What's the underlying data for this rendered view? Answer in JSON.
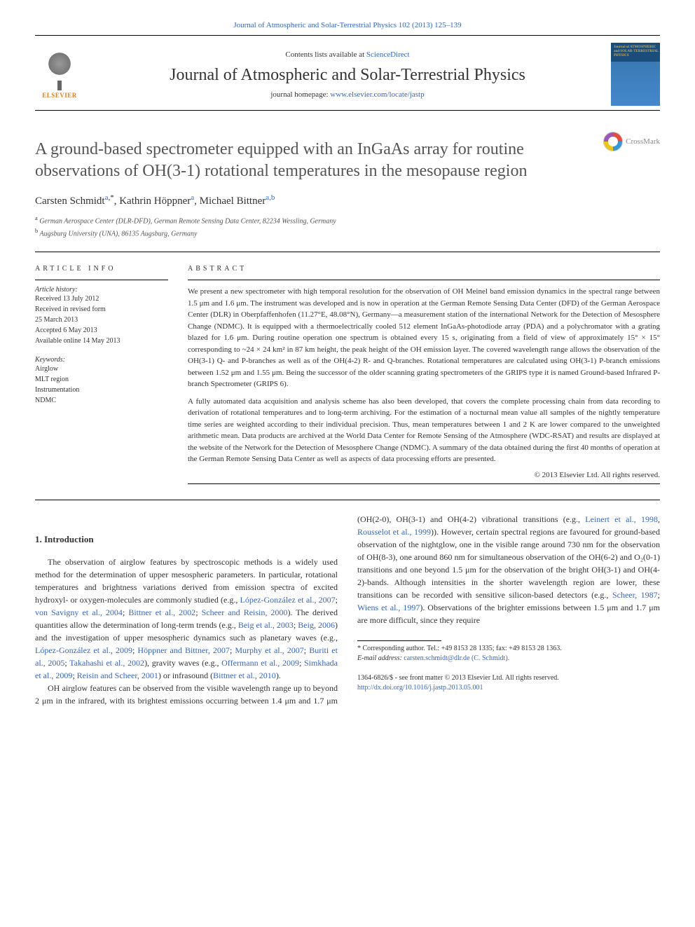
{
  "top_link": {
    "prefix": "",
    "journal_ref": "Journal of Atmospheric and Solar-Terrestrial Physics 102 (2013) 125–139"
  },
  "header": {
    "contents_prefix": "Contents lists available at ",
    "contents_link": "ScienceDirect",
    "journal_name": "Journal of Atmospheric and Solar-Terrestrial Physics",
    "homepage_prefix": "journal homepage: ",
    "homepage_link": "www.elsevier.com/locate/jastp",
    "publisher": "ELSEVIER",
    "cover_title": "Journal of ATMOSPHERIC and SOLAR-TERRESTRIAL PHYSICS"
  },
  "crossmark": "CrossMark",
  "title": "A ground-based spectrometer equipped with an InGaAs array for routine observations of OH(3-1) rotational temperatures in the mesopause region",
  "authors": [
    {
      "name": "Carsten Schmidt",
      "affs": "a",
      "corr": true
    },
    {
      "name": "Kathrin Höppner",
      "affs": "a",
      "corr": false
    },
    {
      "name": "Michael Bittner",
      "affs": "a,b",
      "corr": false
    }
  ],
  "affiliations": [
    {
      "key": "a",
      "text": "German Aerospace Center (DLR-DFD), German Remote Sensing Data Center, 82234 Wessling, Germany"
    },
    {
      "key": "b",
      "text": "Augsburg University (UNA), 86135 Augsburg, Germany"
    }
  ],
  "article_info": {
    "heading": "ARTICLE INFO",
    "history_label": "Article history:",
    "history": [
      "Received 13 July 2012",
      "Received in revised form",
      "25 March 2013",
      "Accepted 6 May 2013",
      "Available online 14 May 2013"
    ],
    "keywords_label": "Keywords:",
    "keywords": [
      "Airglow",
      "MLT region",
      "Instrumentation",
      "NDMC"
    ]
  },
  "abstract": {
    "heading": "ABSTRACT",
    "p1": "We present a new spectrometer with high temporal resolution for the observation of OH Meinel band emission dynamics in the spectral range between 1.5 μm and 1.6 μm. The instrument was developed and is now in operation at the German Remote Sensing Data Center (DFD) of the German Aerospace Center (DLR) in Oberpfaffenhofen (11.27°E, 48.08°N), Germany—a measurement station of the international Network for the Detection of Mesosphere Change (NDMC). It is equipped with a thermoelectrically cooled 512 element InGaAs-photodiode array (PDA) and a polychromator with a grating blazed for 1.6 μm. During routine operation one spectrum is obtained every 15 s, originating from a field of view of approximately 15° × 15° corresponding to ~24 × 24 km² in 87 km height, the peak height of the OH emission layer. The covered wavelength range allows the observation of the OH(3-1) Q- and P-branches as well as of the OH(4-2) R- and Q-branches. Rotational temperatures are calculated using OH(3-1) P-branch emissions between 1.52 μm and 1.55 μm. Being the successor of the older scanning grating spectrometers of the GRIPS type it is named Ground-based Infrared P-branch Spectrometer (GRIPS 6).",
    "p2": "A fully automated data acquisition and analysis scheme has also been developed, that covers the complete processing chain from data recording to derivation of rotational temperatures and to long-term archiving. For the estimation of a nocturnal mean value all samples of the nightly temperature time series are weighted according to their individual precision. Thus, mean temperatures between 1 and 2 K are lower compared to the unweighted arithmetic mean. Data products are archived at the World Data Center for Remote Sensing of the Atmosphere (WDC-RSAT) and results are displayed at the website of the Network for the Detection of Mesosphere Change (NDMC). A summary of the data obtained during the first 40 months of operation at the German Remote Sensing Data Center as well as aspects of data processing efforts are presented.",
    "copyright": "© 2013 Elsevier Ltd. All rights reserved."
  },
  "section1": {
    "heading": "1.  Introduction",
    "body_html": "The observation of airglow features by spectroscopic methods is a widely used method for the determination of upper mesospheric parameters. In particular, rotational temperatures and brightness variations derived from emission spectra of excited hydroxyl- or oxygen-molecules are commonly studied (e.g., <a href='#'>López-González et al., 2007</a>; <a href='#'>von Savigny et al., 2004</a>; <a href='#'>Bittner et al., 2002</a>; <a href='#'>Scheer and Reisin, 2000</a>). The derived quantities allow the determination of long-term trends (e.g., <a href='#'>Beig et al., 2003</a>; <a href='#'>Beig, 2006</a>) and the investigation of upper mesospheric dynamics such as planetary waves (e.g., <a href='#'>López-González et al., 2009</a>; <a href='#'>Höppner and Bittner, 2007</a>; <a href='#'>Murphy et al., 2007</a>; <a href='#'>Buriti et al., 2005</a>; <a href='#'>Takahashi et al., 2002</a>), gravity waves (e.g., <a href='#'>Offermann et al., 2009</a>; <a href='#'>Simkhada et al., 2009</a>; <a href='#'>Reisin and Scheer, 2001</a>) or infrasound (<a href='#'>Bittner et al., 2010</a>).</p><p>OH airglow features can be observed from the visible wavelength range up to beyond 2 μm in the infrared, with its brightest emissions occurring between 1.4 μm and 1.7 μm (OH(2-0), OH(3-1) and OH(4-2) vibrational transitions (e.g., <a href='#'>Leinert et al., 1998</a>, <a href='#'>Rousselot et al., 1999</a>)). However, certain spectral regions are favoured for ground-based observation of the nightglow, one in the visible range around 730 nm for the observation of OH(8-3), one around 860 nm for simultaneous observation of the OH(6-2) and O₂(0-1) transitions and one beyond 1.5 μm for the observation of the bright OH(3-1) and OH(4-2)-bands. Although intensities in the shorter wavelength region are lower, these transitions can be recorded with sensitive silicon-based detectors (e.g., <a href='#'>Scheer, 1987</a>; <a href='#'>Wiens et al., 1997</a>). Observations of the brighter emissions between 1.5 μm and 1.7 μm are more difficult, since they require"
  },
  "footnote": {
    "corr_label": "* Corresponding author. Tel.: +49 8153 28 1335; fax: +49 8153 28 1363.",
    "email_label": "E-mail address: ",
    "email": "carsten.schmidt@dlr.de (C. Schmidt)."
  },
  "bottom": {
    "issn_line": "1364-6826/$ - see front matter © 2013 Elsevier Ltd. All rights reserved.",
    "doi_link": "http://dx.doi.org/10.1016/j.jastp.2013.05.001"
  },
  "colors": {
    "link": "#3366cc",
    "elsevier_orange": "#e67e22",
    "text": "#333333",
    "muted": "#666666"
  }
}
